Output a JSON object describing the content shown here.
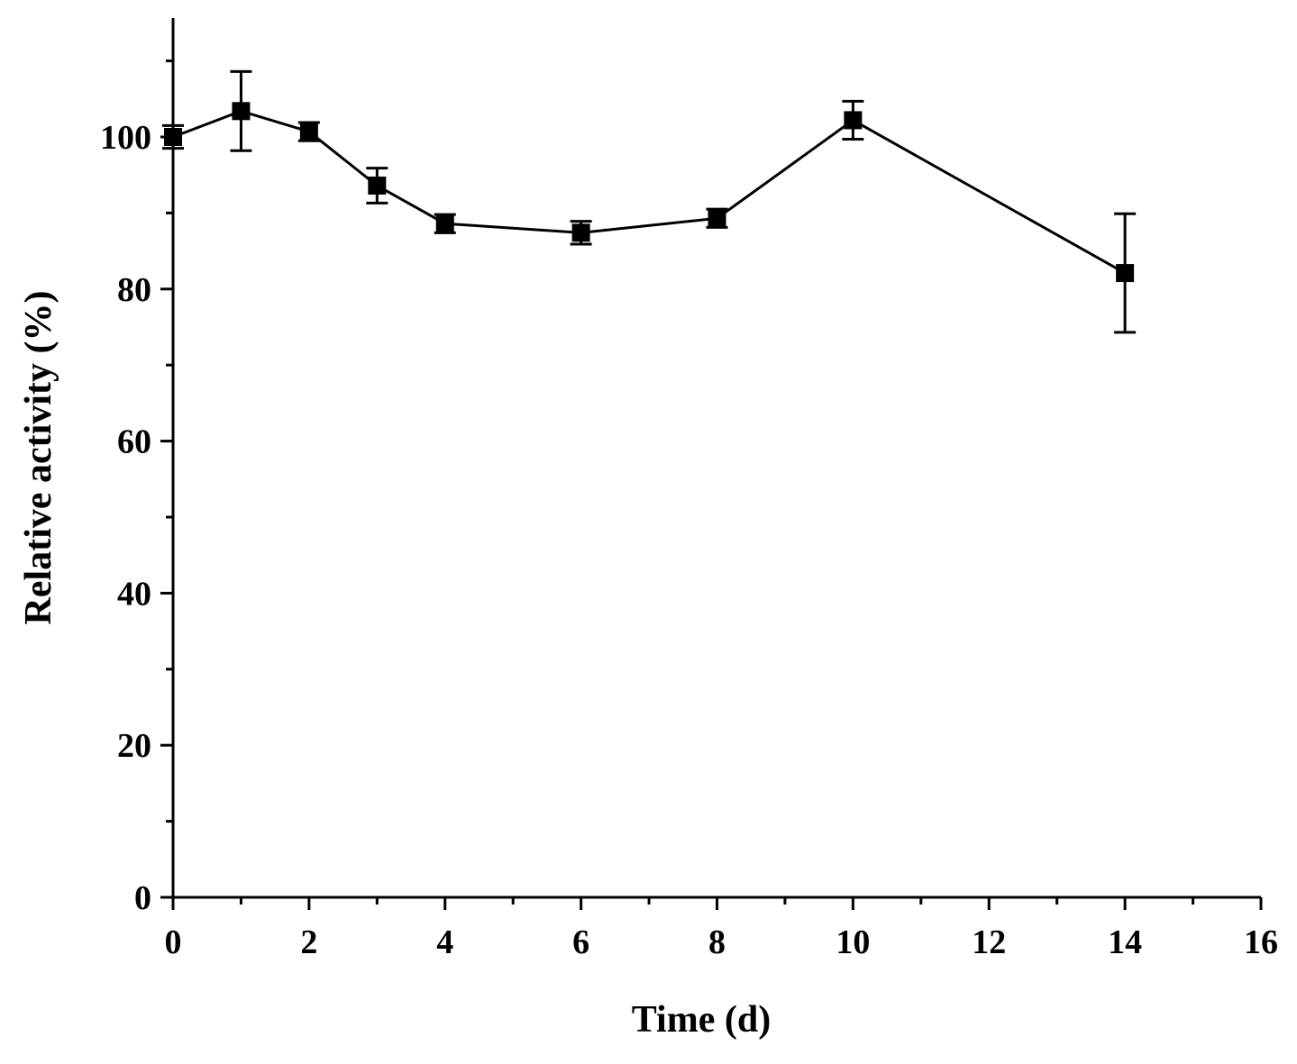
{
  "chart_data": {
    "type": "line",
    "title": "",
    "xlabel": "Time (d)",
    "ylabel": "Relative activity (%)",
    "xlim": [
      0,
      16
    ],
    "ylim": [
      0,
      112
    ],
    "x_ticks": [
      0,
      2,
      4,
      6,
      8,
      10,
      12,
      14,
      16
    ],
    "y_ticks": [
      0,
      20,
      40,
      60,
      80,
      100
    ],
    "x_tick_labels": [
      "0",
      "2",
      "4",
      "6",
      "8",
      "10",
      "12",
      "14",
      "16"
    ],
    "y_tick_labels": [
      "0",
      "20",
      "40",
      "60",
      "80",
      "100"
    ],
    "grid": false,
    "legend": "none",
    "series": [
      {
        "name": "Relative activity",
        "marker": "square",
        "color": "#000000",
        "x": [
          0,
          1,
          2,
          3,
          4,
          6,
          8,
          10,
          14
        ],
        "y": [
          100.0,
          103.4,
          100.7,
          93.6,
          88.6,
          87.4,
          89.3,
          102.2,
          82.1
        ],
        "error": [
          1.5,
          5.2,
          1.2,
          2.3,
          1.2,
          1.5,
          1.2,
          2.5,
          7.8
        ]
      }
    ]
  }
}
